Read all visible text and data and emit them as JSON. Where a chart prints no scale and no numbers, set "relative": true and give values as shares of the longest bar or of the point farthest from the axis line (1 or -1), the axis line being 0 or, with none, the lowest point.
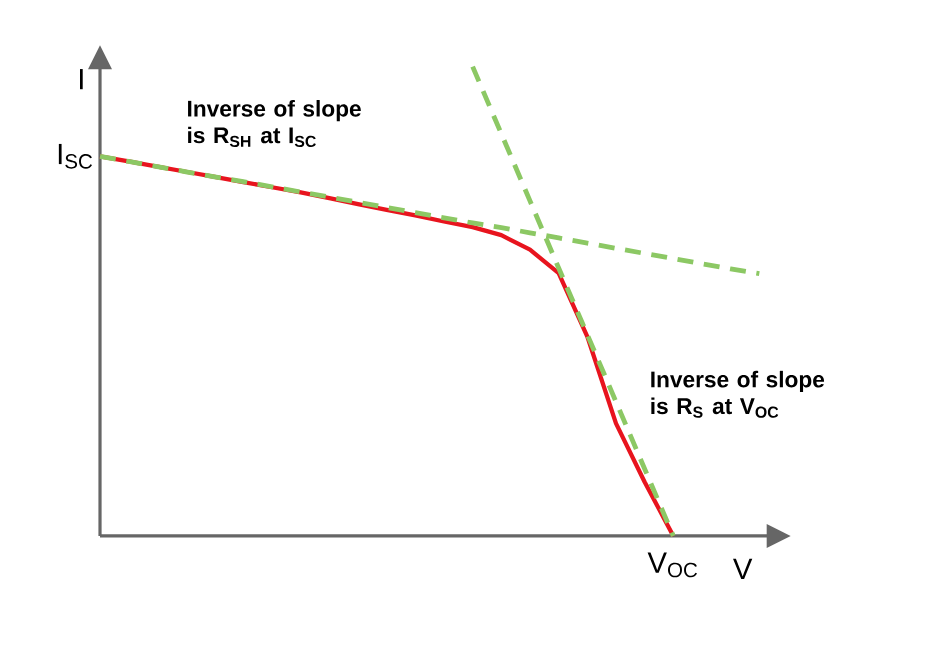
{
  "chart_data": {
    "type": "line",
    "relative": true,
    "xlabel": "V",
    "ylabel": "I",
    "categories": [
      null,
      null,
      null,
      null,
      null,
      null,
      null,
      null,
      null,
      null,
      null,
      null,
      null,
      null,
      null,
      null,
      null,
      null,
      null,
      null,
      null,
      null,
      null,
      null
    ],
    "series": [
      {
        "color": "#e8141e",
        "line_style": "solid",
        "values": [
          0.809,
          0.798,
          0.787,
          0.776,
          0.765,
          0.754,
          0.743,
          0.732,
          0.72,
          0.707,
          0.695,
          0.683,
          0.67,
          0.658,
          0.641,
          0.61,
          0.56,
          0.425,
          0.24,
          0.115,
          0,
          null,
          null,
          null
        ]
      },
      {
        "color": "#8cc864",
        "line_style": "dashed",
        "values": [
          0.809,
          0.798,
          0.787,
          0.776,
          0.765,
          0.755,
          0.744,
          0.733,
          0.722,
          0.711,
          0.7,
          0.689,
          0.678,
          0.667,
          0.657,
          0.646,
          0.635,
          0.624,
          0.613,
          0.602,
          0.591,
          0.58,
          0.569,
          0.559
        ]
      },
      {
        "color": "#8cc864",
        "line_style": "dashed",
        "values": [
          null,
          null,
          null,
          null,
          null,
          null,
          null,
          null,
          null,
          null,
          null,
          null,
          null,
          1,
          0.857,
          0.714,
          0.571,
          0.429,
          0.286,
          0.143,
          0,
          null,
          null,
          null
        ]
      }
    ],
    "annotations": [
      "I$_{SC}$",
      "V$_{OC}$",
      "Inverse of slope is R$_{SH}$ at I$_{SC}$",
      "Inverse of slope is R$_{S}$ at V$_{OC}$"
    ]
  }
}
